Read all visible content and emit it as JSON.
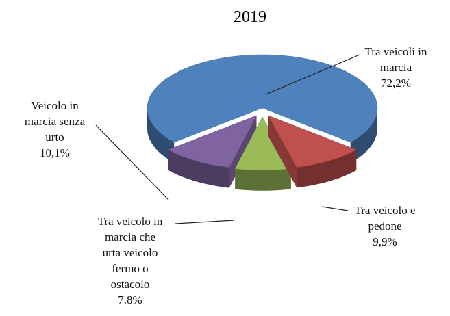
{
  "chart_data": {
    "type": "pie",
    "title": "2019",
    "categories": [
      "Tra veicoli in\nmarcia",
      "Tra veicolo e\npedone",
      "Tra veicolo in\nmarcia che\nurta veicolo\nfermo o\nostacolo",
      "Veicolo in\nmarcia senza\nurto"
    ],
    "values": [
      72.2,
      9.9,
      7.8,
      10.1
    ],
    "value_labels": [
      "72,2%",
      "9,9%",
      "7.8%",
      "10,1%"
    ],
    "colors": [
      "#4f81bd",
      "#c0504d",
      "#9bbb59",
      "#8064a2"
    ]
  }
}
